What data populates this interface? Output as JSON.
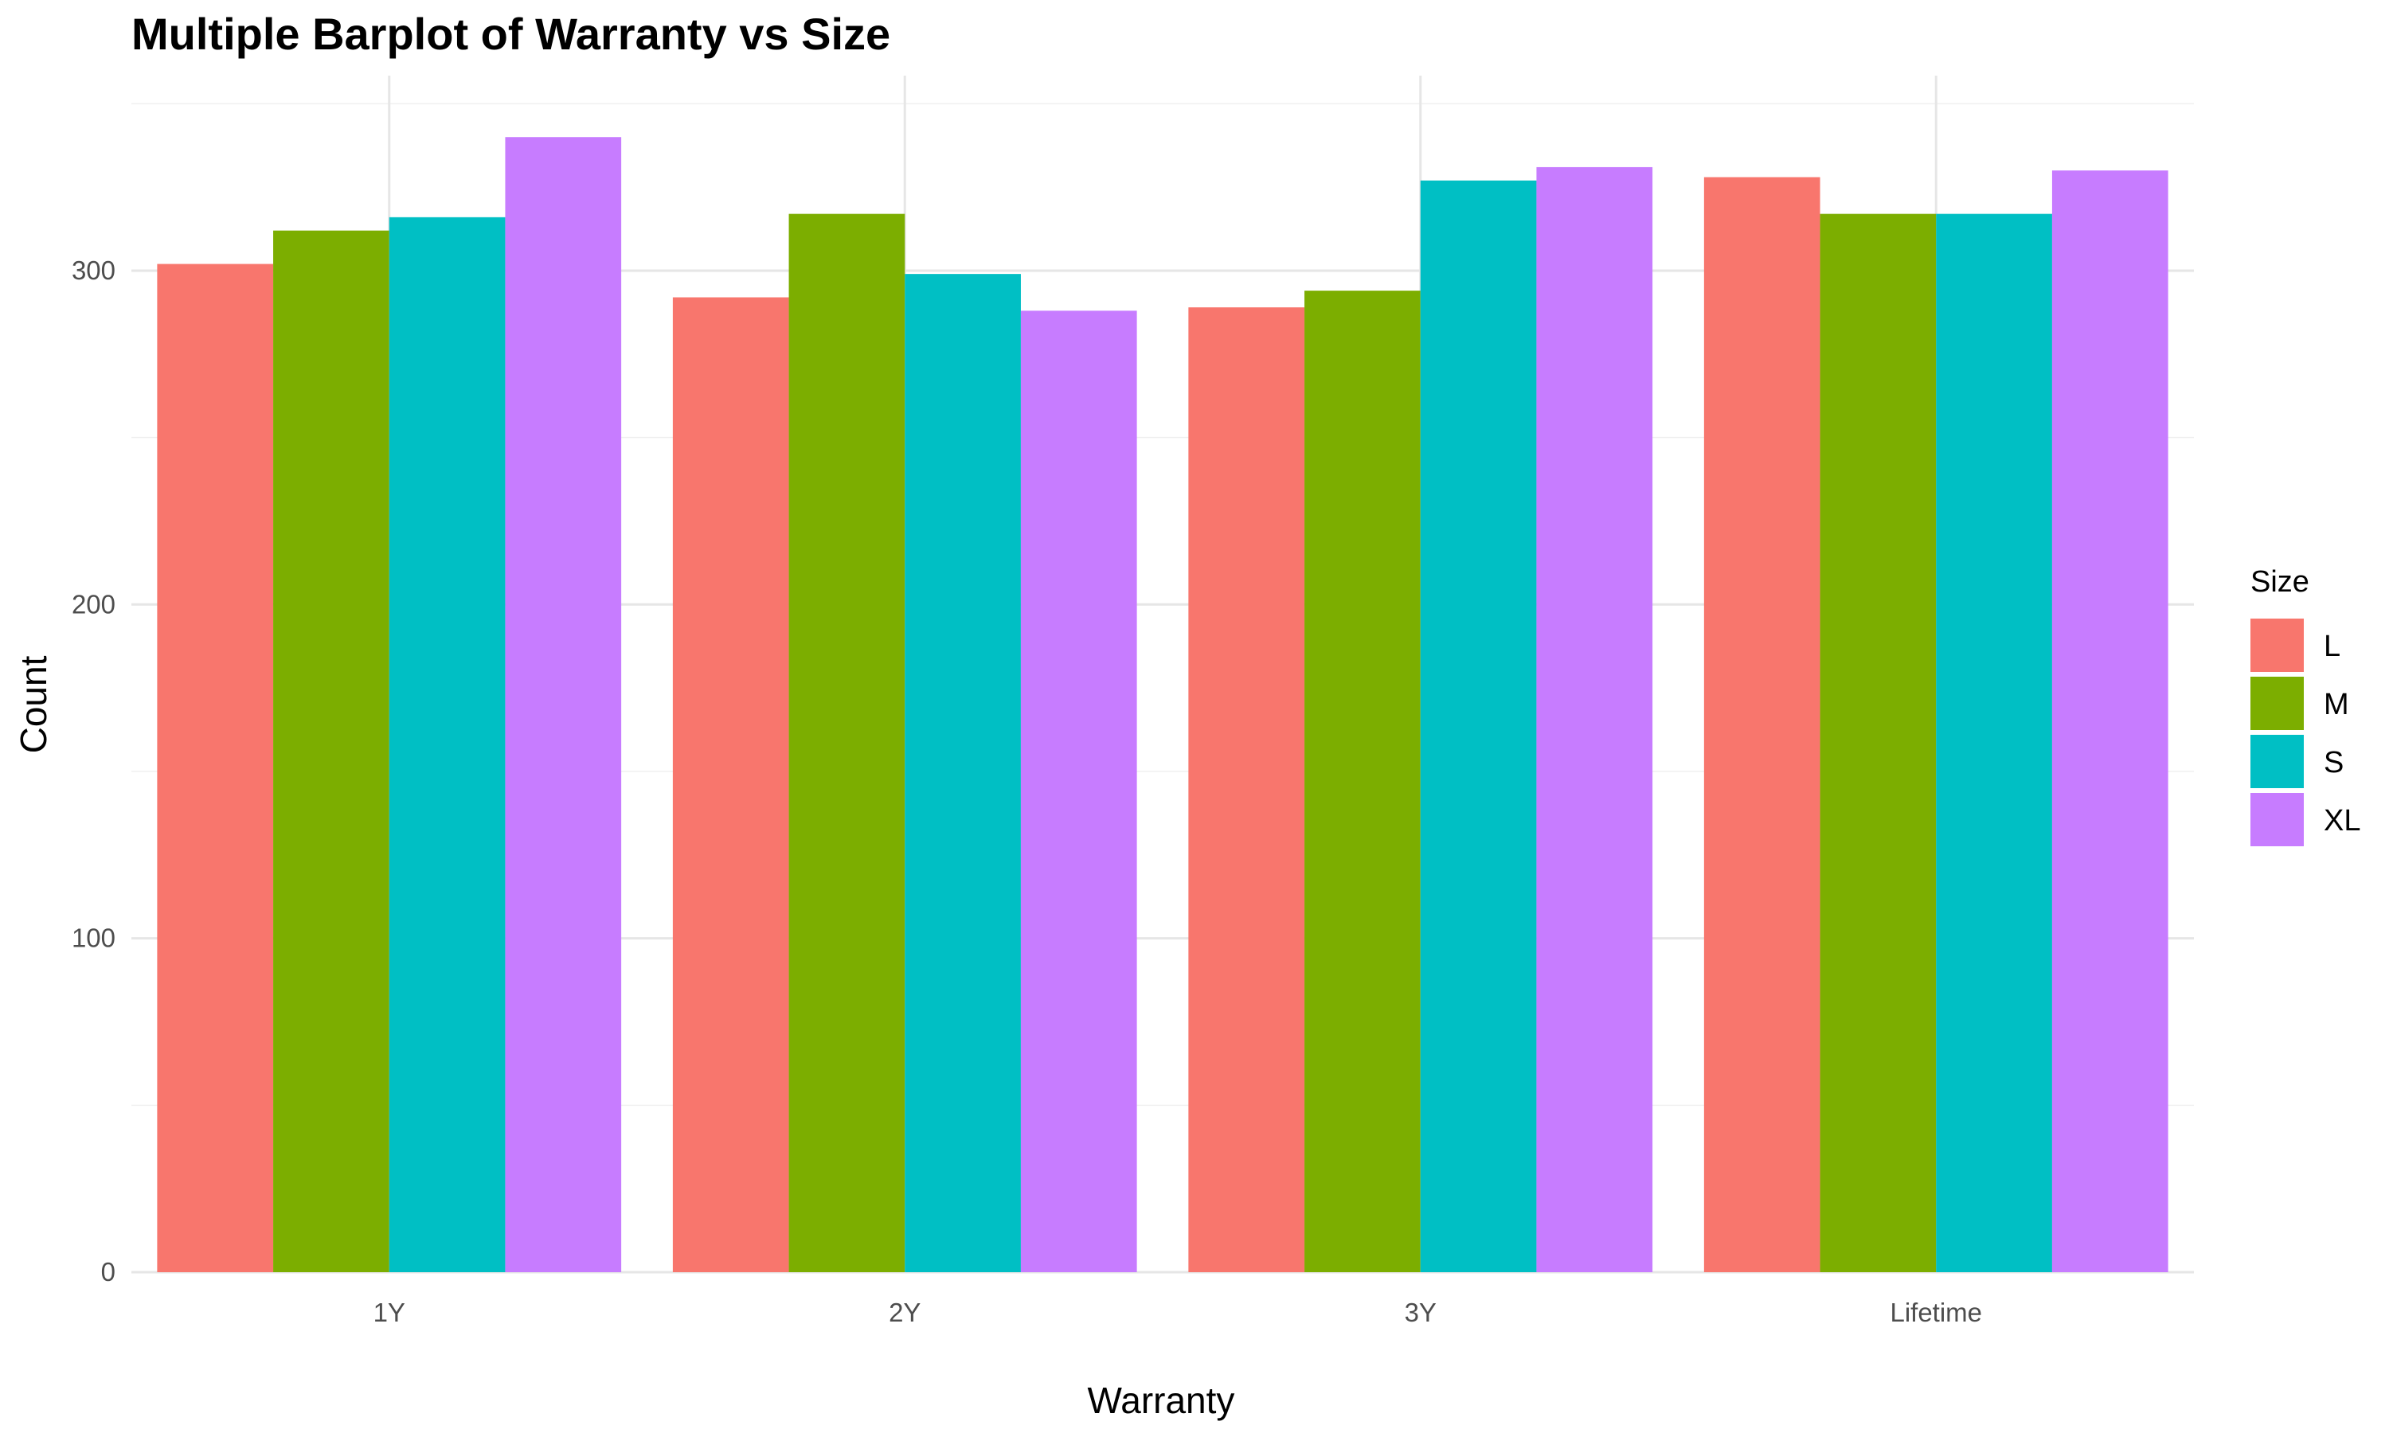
{
  "chart_data": {
    "type": "bar",
    "title": "Multiple Barplot of Warranty vs Size",
    "xlabel": "Warranty",
    "ylabel": "Count",
    "categories": [
      "1Y",
      "2Y",
      "3Y",
      "Lifetime"
    ],
    "series": [
      {
        "name": "L",
        "color": "#F8766D",
        "values": [
          302,
          292,
          289,
          328
        ]
      },
      {
        "name": "M",
        "color": "#7CAE00",
        "values": [
          312,
          317,
          294,
          317
        ]
      },
      {
        "name": "S",
        "color": "#00BFC4",
        "values": [
          316,
          299,
          327,
          317
        ]
      },
      {
        "name": "XL",
        "color": "#C77CFF",
        "values": [
          340,
          288,
          331,
          330
        ]
      }
    ],
    "ylim": [
      0,
      350
    ],
    "yticks": [
      "0",
      "100",
      "200",
      "300"
    ],
    "legend": {
      "title": "Size",
      "position": "right"
    },
    "grid": true
  }
}
